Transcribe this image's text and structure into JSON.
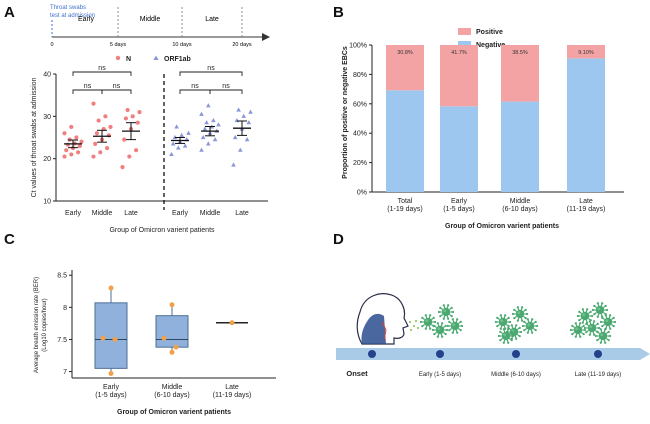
{
  "colors": {
    "pink": "#f08080",
    "pink_fill": "#f4a3a5",
    "blue": "#8a96d8",
    "blue_fill": "#9ec7ef",
    "box_fill": "#8fb1db",
    "box_stroke": "#4d6f96",
    "orange": "#f2a14a",
    "timeline": "#a9cbe8",
    "dot": "#24418c",
    "virus": "#4ba870",
    "timeline_accent": "#3d6fd1"
  },
  "panel_labels": {
    "a": "A",
    "b": "B",
    "c": "C",
    "d": "D"
  },
  "timeline": {
    "start_label": "Throat swabs\ntest at admission",
    "phases": [
      "Early",
      "Middle",
      "Late"
    ],
    "ticks": [
      "0",
      "5 days",
      "10 days",
      "20 days"
    ]
  },
  "chart_data": [
    {
      "panel": "A",
      "type": "scatter",
      "ylabel": "Ct values of throat swabs at admission",
      "xlabel": "Group of Omicron varient patients",
      "ylim": [
        10,
        40
      ],
      "yticks": [
        "10",
        "20",
        "30",
        "40"
      ],
      "legend": [
        "N",
        "ORF1ab"
      ],
      "significance": [
        "ns",
        "ns",
        "ns",
        "ns",
        "ns",
        "ns"
      ],
      "series": [
        {
          "name": "N",
          "groups": [
            {
              "category": "Early",
              "mean": 23.5,
              "sem": 0.9,
              "values": [
                20.5,
                21.0,
                21.5,
                22.0,
                22.5,
                23.0,
                23.3,
                23.6,
                24.0,
                24.5,
                25.0,
                26.0,
                27.5
              ]
            },
            {
              "category": "Middle",
              "mean": 25.3,
              "sem": 1.4,
              "values": [
                20.5,
                21.5,
                22.5,
                23.5,
                24.5,
                25.5,
                26.0,
                27.0,
                27.5,
                29.0,
                30.0,
                33.0
              ]
            },
            {
              "category": "Late",
              "mean": 26.5,
              "sem": 2.0,
              "values": [
                18.0,
                20.5,
                22.0,
                24.5,
                27.0,
                28.5,
                29.5,
                30.0,
                31.0,
                31.5
              ]
            }
          ]
        },
        {
          "name": "ORF1ab",
          "groups": [
            {
              "category": "Early",
              "mean": 24.3,
              "sem": 0.7,
              "values": [
                21.0,
                22.5,
                23.0,
                23.5,
                24.0,
                24.5,
                25.0,
                25.5,
                26.0,
                27.5
              ]
            },
            {
              "category": "Middle",
              "mean": 26.5,
              "sem": 1.1,
              "values": [
                22.0,
                23.5,
                24.5,
                25.0,
                26.0,
                26.5,
                27.0,
                27.5,
                28.0,
                28.5,
                29.0,
                30.5,
                32.5
              ]
            },
            {
              "category": "Late",
              "mean": 27.2,
              "sem": 1.7,
              "values": [
                18.5,
                22.0,
                24.5,
                25.0,
                27.0,
                28.5,
                29.0,
                30.0,
                31.0,
                31.5
              ]
            }
          ]
        }
      ]
    },
    {
      "panel": "B",
      "type": "bar",
      "stacked": true,
      "ylabel": "Proportion of positive or negative EBCs",
      "xlabel": "Group of Omicron varient patients",
      "ylim": [
        0,
        100
      ],
      "yticks": [
        "0%",
        "20%",
        "40%",
        "60%",
        "80%",
        "100%"
      ],
      "categories": [
        "Total\n(1-19 days)",
        "Early\n(1-5 days)",
        "Middle\n(6-10 days)",
        "Late\n(11-19 days)"
      ],
      "legend_position": "top",
      "series": [
        {
          "name": "Positive",
          "values": [
            30.8,
            41.7,
            38.5,
            9.1
          ],
          "labels": [
            "30.8%",
            "41.7%",
            "38.5%",
            "9.10%"
          ]
        },
        {
          "name": "Negative",
          "values": [
            69.2,
            58.3,
            61.5,
            90.9
          ]
        }
      ]
    },
    {
      "panel": "C",
      "type": "box",
      "ylabel": "Average breath emission rate (BER)\n(Log10 copies/hour)",
      "xlabel": "Group of Omicron varient patients",
      "ylim": [
        6.9,
        8.55
      ],
      "yticks": [
        "7",
        "7.5",
        "8",
        "8.5"
      ],
      "categories": [
        "Early\n(1-5 days)",
        "Middle\n(6-10 days)",
        "Late\n(11-19 days)"
      ],
      "boxes": [
        {
          "min": 6.97,
          "q1": 7.05,
          "median": 7.5,
          "q3": 8.07,
          "max": 8.3,
          "points": [
            6.97,
            7.5,
            7.52,
            8.3
          ]
        },
        {
          "min": 7.3,
          "q1": 7.38,
          "median": 7.5,
          "q3": 7.87,
          "max": 8.04,
          "points": [
            7.3,
            7.38,
            7.52,
            8.04
          ]
        },
        {
          "min": 7.76,
          "q1": 7.76,
          "median": 7.76,
          "q3": 7.76,
          "max": 7.76,
          "points": [
            7.76
          ]
        }
      ]
    }
  ],
  "panel_d": {
    "labels": [
      "Onset",
      "Early (1-5 days)",
      "Middle (6-10 days)",
      "Late (11-19 days)"
    ],
    "virus_counts": [
      4,
      5,
      6
    ]
  }
}
